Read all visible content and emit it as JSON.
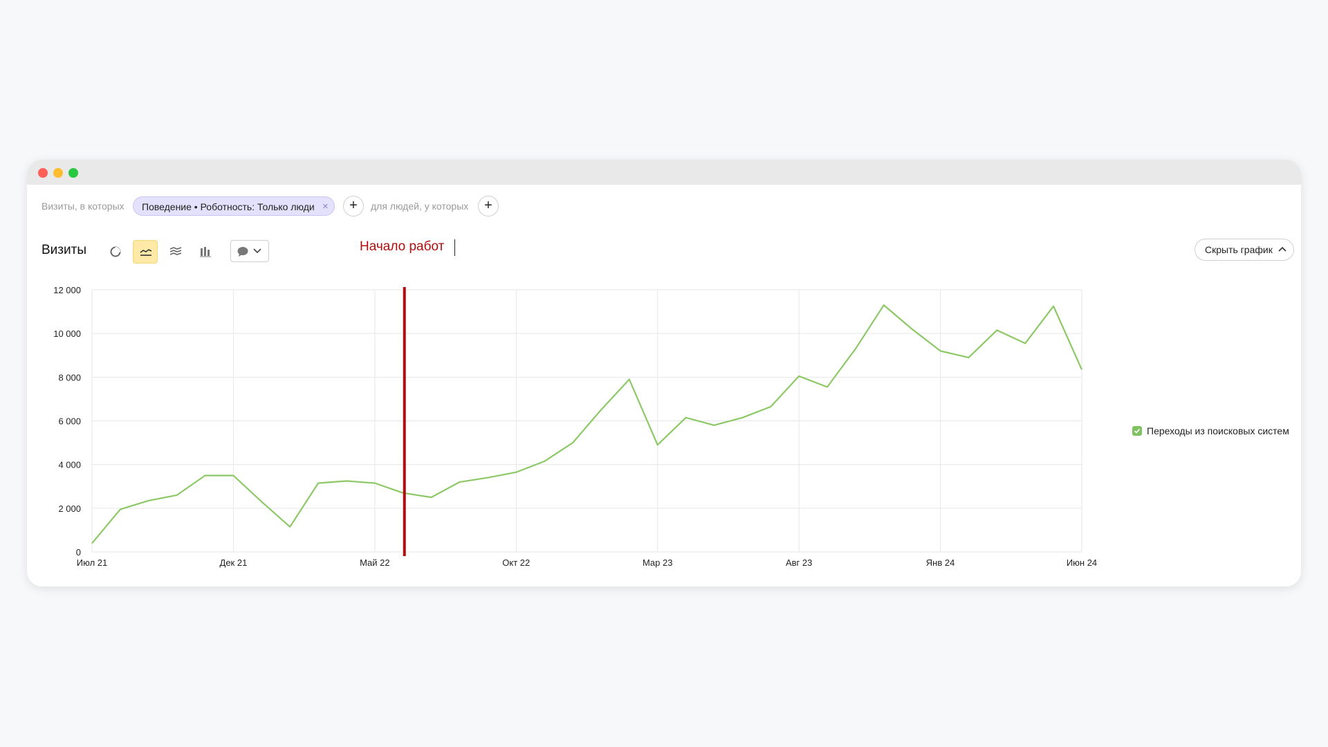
{
  "filter": {
    "visits_label": "Визиты, в которых",
    "chip_label": "Поведение • Роботность: Только люди",
    "people_label": "для людей, у которых",
    "add_symbol": "+",
    "remove_symbol": "×"
  },
  "toolbar": {
    "title": "Визиты",
    "tools": [
      "pie-chart-icon",
      "line-chart-icon",
      "area-chart-icon",
      "bar-chart-icon"
    ],
    "active_tool": "line-chart-icon",
    "annotation_menu_icon": "comment-icon",
    "annotation_text": "Начало работ",
    "hide_chart_label": "Скрыть график"
  },
  "colors": {
    "series": "#8cc866",
    "annotation": "#b10d0d",
    "active_tool_bg": "#ffe9a6",
    "chip_bg": "#e3e1fb"
  },
  "chart_data": {
    "type": "line",
    "title": "",
    "xlabel": "",
    "ylabel": "",
    "ylim": [
      0,
      12000
    ],
    "yticks": [
      0,
      2000,
      4000,
      6000,
      8000,
      10000,
      12000
    ],
    "ytick_labels": [
      "0",
      "2 000",
      "4 000",
      "6 000",
      "8 000",
      "10 000",
      "12 000"
    ],
    "x_tick_labels": [
      "Июл 21",
      "Дек 21",
      "Май 22",
      "Окт 22",
      "Мар 23",
      "Авг 23",
      "Янв 24",
      "Июн 24"
    ],
    "x": [
      "2021-07",
      "2021-08",
      "2021-09",
      "2021-10",
      "2021-11",
      "2021-12",
      "2022-01",
      "2022-02",
      "2022-03",
      "2022-04",
      "2022-05",
      "2022-06",
      "2022-07",
      "2022-08",
      "2022-09",
      "2022-10",
      "2022-11",
      "2022-12",
      "2023-01",
      "2023-02",
      "2023-03",
      "2023-04",
      "2023-05",
      "2023-06",
      "2023-07",
      "2023-08",
      "2023-09",
      "2023-10",
      "2023-11",
      "2023-12",
      "2024-01",
      "2024-02",
      "2024-03",
      "2024-04",
      "2024-05",
      "2024-06"
    ],
    "series": [
      {
        "name": "Переходы из поисковых систем",
        "values": [
          400,
          1950,
          2350,
          2600,
          3500,
          3500,
          2300,
          1150,
          3150,
          3250,
          3150,
          2700,
          2500,
          3200,
          3400,
          3650,
          4150,
          5000,
          6500,
          7900,
          4900,
          6150,
          5800,
          6150,
          6650,
          8050,
          7550,
          9300,
          11300,
          10200,
          9200,
          8900,
          10150,
          9550,
          11250,
          8350
        ]
      }
    ],
    "annotation": {
      "x": "2022-06",
      "label": "Начало работ"
    },
    "grid": true,
    "legend": "right"
  }
}
